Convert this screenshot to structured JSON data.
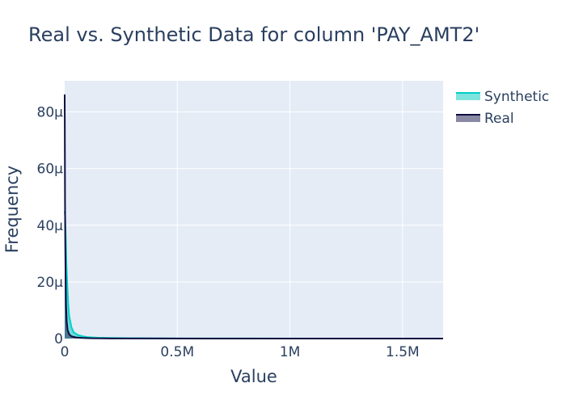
{
  "chart_data": {
    "type": "area",
    "title": "Real vs. Synthetic Data for column 'PAY_AMT2'",
    "xlabel": "Value",
    "ylabel": "Frequency",
    "xlim": [
      0,
      1680000
    ],
    "ylim": [
      0,
      9.1e-05
    ],
    "x_ticks": [
      {
        "value": 0,
        "label": "0"
      },
      {
        "value": 500000,
        "label": "0.5M"
      },
      {
        "value": 1000000,
        "label": "1M"
      },
      {
        "value": 1500000,
        "label": "1.5M"
      }
    ],
    "y_ticks": [
      {
        "value": 0,
        "label": "0"
      },
      {
        "value": 2e-05,
        "label": "20µ"
      },
      {
        "value": 4e-05,
        "label": "40µ"
      },
      {
        "value": 6e-05,
        "label": "60µ"
      },
      {
        "value": 8e-05,
        "label": "80µ"
      }
    ],
    "grid": true,
    "legend_position": "top-right",
    "series": [
      {
        "name": "Synthetic",
        "line_color": "#00d0c8",
        "fill_color": "rgba(0,200,190,0.5)",
        "x": [
          0,
          2000,
          5000,
          8000,
          12000,
          16000,
          20000,
          30000,
          40000,
          60000,
          80000,
          100000,
          150000,
          200000,
          300000,
          500000,
          800000,
          1200000,
          1680000
        ],
        "y": [
          4.5e-05,
          4.3e-05,
          3.5e-05,
          2.6e-05,
          1.8e-05,
          1.2e-05,
          8e-06,
          4e-06,
          2.2e-06,
          1.2e-06,
          8e-07,
          5e-07,
          3e-07,
          2e-07,
          1e-07,
          5e-08,
          2e-08,
          1e-08,
          0
        ]
      },
      {
        "name": "Real",
        "line_color": "#0d0d40",
        "fill_color": "rgba(40,40,90,0.55)",
        "x": [
          0,
          500,
          1000,
          1500,
          2500,
          4000,
          6000,
          9000,
          13000,
          20000,
          30000,
          50000,
          80000,
          120000,
          200000,
          400000,
          800000,
          1680000
        ],
        "y": [
          8.62e-05,
          7.5e-05,
          6.2e-05,
          4.8e-05,
          3.4e-05,
          2.2e-05,
          1.2e-05,
          6e-06,
          3e-06,
          1.5e-06,
          8e-07,
          4e-07,
          2e-07,
          1e-07,
          5e-08,
          2e-08,
          1e-08,
          0
        ]
      }
    ]
  }
}
